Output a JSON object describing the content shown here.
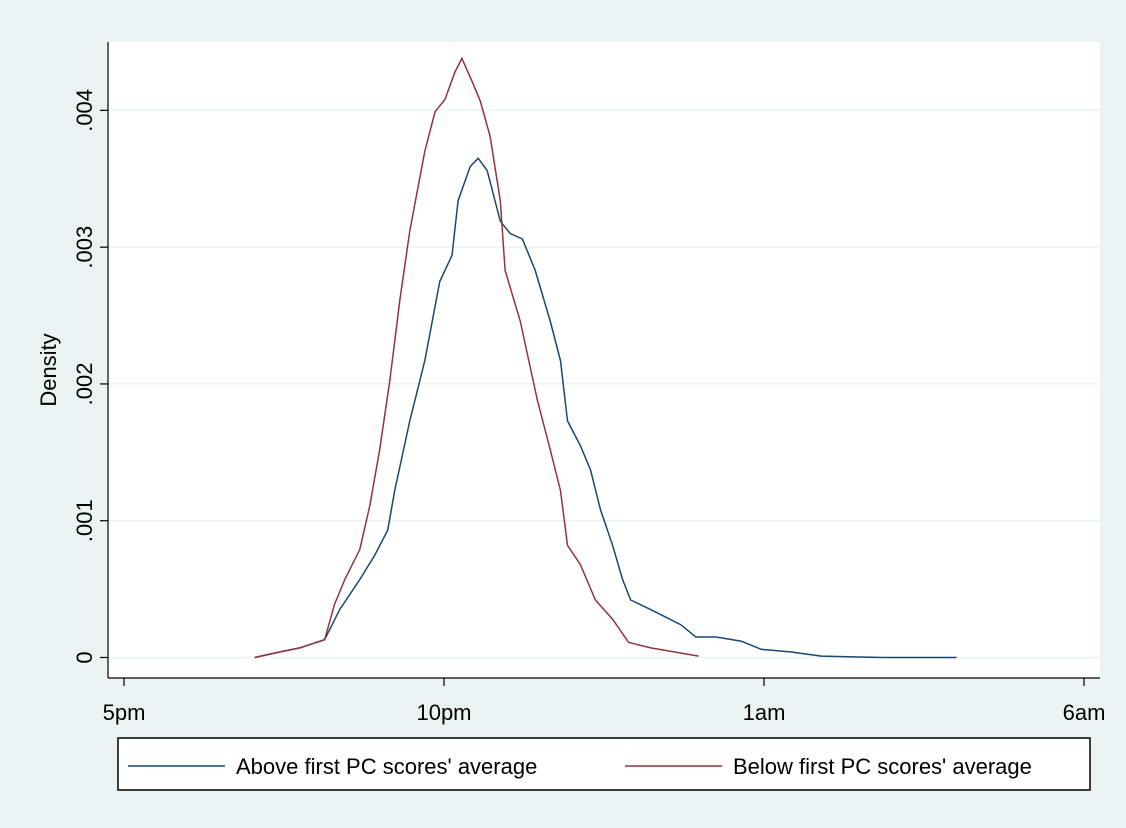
{
  "chart_data": {
    "type": "line",
    "ylabel": "Density",
    "xlim": [
      -0.05,
      3.05
    ],
    "xticks": [
      {
        "value": 0,
        "label": "5pm"
      },
      {
        "value": 1,
        "label": "10pm"
      },
      {
        "value": 2,
        "label": "1am"
      },
      {
        "value": 3,
        "label": "6am"
      }
    ],
    "ylim": [
      -0.00015,
      0.0045
    ],
    "yticks": [
      0,
      {
        "value": 0.001,
        "label": ".001"
      },
      {
        "value": 0.002,
        "label": ".002"
      },
      {
        "value": 0.003,
        "label": ".003"
      },
      {
        "value": 0.004,
        "label": ".004"
      }
    ],
    "grid": true,
    "series": [
      {
        "name": "Above first PC scores' average",
        "color": "#1a476f",
        "x": [
          0.408,
          0.486,
          0.549,
          0.627,
          0.674,
          0.737,
          0.784,
          0.824,
          0.846,
          0.893,
          0.94,
          0.987,
          1.025,
          1.044,
          1.082,
          1.107,
          1.135,
          1.176,
          1.207,
          1.245,
          1.285,
          1.332,
          1.364,
          1.386,
          1.426,
          1.458,
          1.489,
          1.527,
          1.558,
          1.583,
          1.646,
          1.74,
          1.787,
          1.85,
          1.928,
          1.991,
          2.085,
          2.179,
          2.367,
          2.602
        ],
        "values": [
          0,
          4e-05,
          7e-05,
          0.00013,
          0.00035,
          0.00057,
          0.00075,
          0.00093,
          0.00122,
          0.00173,
          0.00217,
          0.00275,
          0.00294,
          0.00334,
          0.00359,
          0.00365,
          0.00356,
          0.00319,
          0.0031,
          0.00306,
          0.00283,
          0.00246,
          0.00217,
          0.00173,
          0.00155,
          0.00137,
          0.00108,
          0.00082,
          0.00057,
          0.00042,
          0.00035,
          0.00024,
          0.00015,
          0.00015,
          0.00012,
          6e-05,
          4e-05,
          1e-05,
          0,
          0
        ]
      },
      {
        "name": "Below first PC scores' average",
        "color": "#90353b",
        "x": [
          0.408,
          0.486,
          0.549,
          0.627,
          0.658,
          0.69,
          0.737,
          0.768,
          0.799,
          0.831,
          0.862,
          0.893,
          0.94,
          0.972,
          1.003,
          1.034,
          1.056,
          1.088,
          1.113,
          1.144,
          1.176,
          1.191,
          1.238,
          1.292,
          1.332,
          1.364,
          1.386,
          1.426,
          1.473,
          1.527,
          1.577,
          1.646,
          1.796
        ],
        "values": [
          0,
          4e-05,
          7e-05,
          0.00013,
          0.00039,
          0.00057,
          0.00079,
          0.00111,
          0.00152,
          0.00203,
          0.00261,
          0.00312,
          0.0037,
          0.00399,
          0.00408,
          0.00428,
          0.00438,
          0.00421,
          0.00407,
          0.00381,
          0.00334,
          0.00283,
          0.00246,
          0.00188,
          0.00152,
          0.00122,
          0.00082,
          0.00068,
          0.00042,
          0.00028,
          0.00011,
          7e-05,
          1e-05
        ]
      }
    ]
  }
}
